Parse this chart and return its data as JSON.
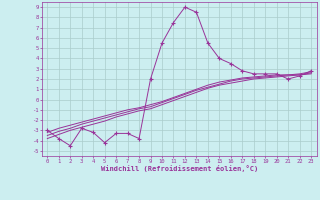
{
  "xlabel": "Windchill (Refroidissement éolien,°C)",
  "bg_color": "#cceef0",
  "grid_color": "#aacccc",
  "line_color": "#993399",
  "x_hours": [
    0,
    1,
    2,
    3,
    4,
    5,
    6,
    7,
    8,
    9,
    10,
    11,
    12,
    13,
    14,
    15,
    16,
    17,
    18,
    19,
    20,
    21,
    22,
    23
  ],
  "temp_line": [
    -3.0,
    -3.8,
    -4.5,
    -2.8,
    -3.2,
    -4.2,
    -3.3,
    -3.3,
    -3.8,
    2.0,
    5.5,
    7.5,
    9.0,
    8.5,
    5.5,
    4.0,
    3.5,
    2.8,
    2.5,
    2.5,
    2.5,
    2.0,
    2.3,
    2.8
  ],
  "windchill_line1": [
    -3.2,
    -2.8,
    -2.5,
    -2.2,
    -1.9,
    -1.6,
    -1.3,
    -1.0,
    -0.8,
    -0.5,
    -0.2,
    0.2,
    0.6,
    1.0,
    1.4,
    1.7,
    1.9,
    2.1,
    2.2,
    2.3,
    2.4,
    2.4,
    2.5,
    2.7
  ],
  "windchill_line2": [
    -3.5,
    -3.1,
    -2.8,
    -2.4,
    -2.1,
    -1.8,
    -1.5,
    -1.2,
    -0.9,
    -0.7,
    -0.3,
    0.1,
    0.5,
    0.9,
    1.2,
    1.5,
    1.8,
    2.0,
    2.1,
    2.2,
    2.3,
    2.4,
    2.4,
    2.6
  ],
  "windchill_line3": [
    -3.8,
    -3.4,
    -3.0,
    -2.7,
    -2.4,
    -2.1,
    -1.7,
    -1.4,
    -1.1,
    -0.9,
    -0.5,
    -0.1,
    0.3,
    0.7,
    1.1,
    1.4,
    1.6,
    1.8,
    2.0,
    2.1,
    2.2,
    2.3,
    2.4,
    2.5
  ],
  "xlim": [
    -0.5,
    23.5
  ],
  "ylim": [
    -5.5,
    9.5
  ],
  "yticks": [
    -5,
    -4,
    -3,
    -2,
    -1,
    0,
    1,
    2,
    3,
    4,
    5,
    6,
    7,
    8,
    9
  ],
  "xticks": [
    0,
    1,
    2,
    3,
    4,
    5,
    6,
    7,
    8,
    9,
    10,
    11,
    12,
    13,
    14,
    15,
    16,
    17,
    18,
    19,
    20,
    21,
    22,
    23
  ],
  "fig_width": 3.2,
  "fig_height": 2.0,
  "dpi": 100
}
